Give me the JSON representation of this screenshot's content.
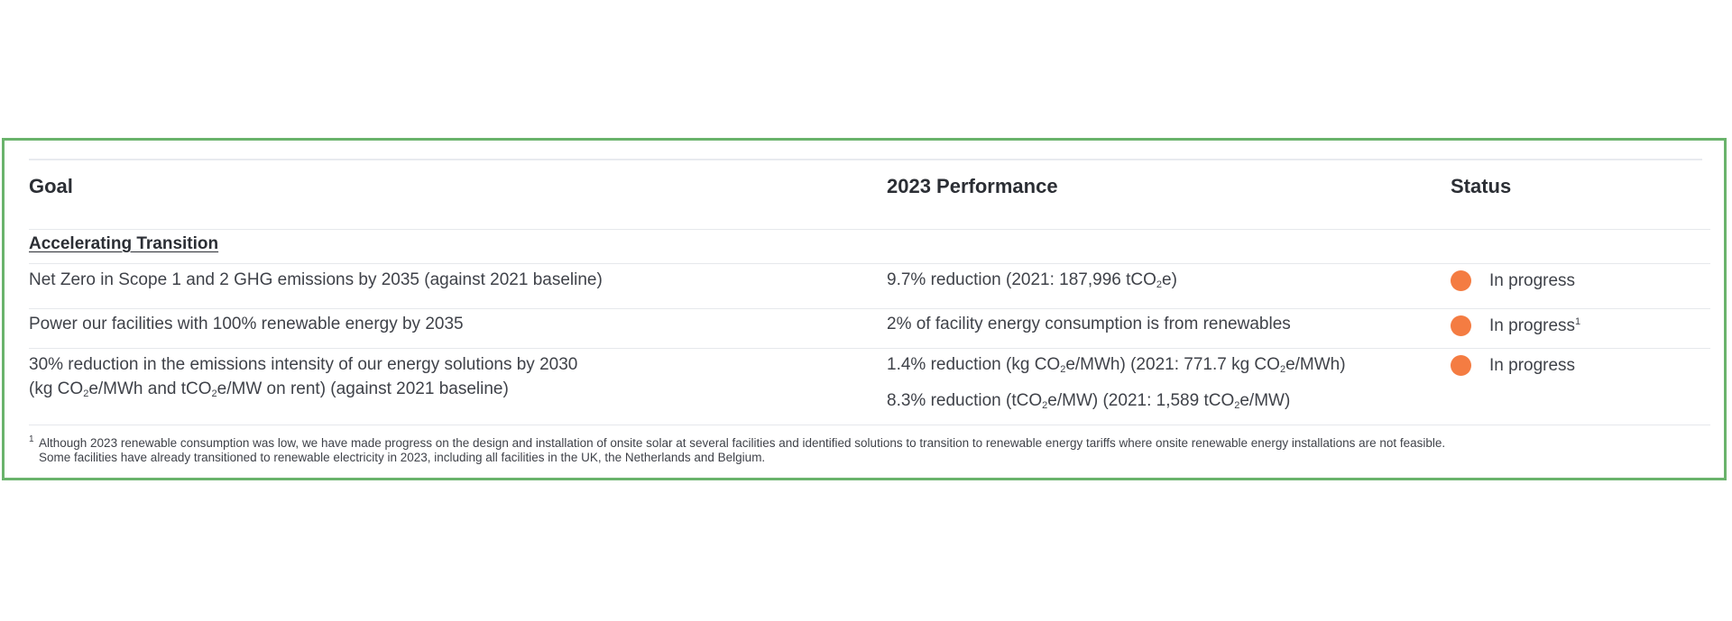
{
  "colors": {
    "frame_border": "#6ab36c",
    "status_dot": "#f47c42"
  },
  "header": {
    "goal": "Goal",
    "performance": "2023 Performance",
    "status": "Status"
  },
  "section": {
    "title": "Accelerating Transition"
  },
  "rows": [
    {
      "goal": "Net Zero in Scope 1 and 2 GHG emissions by 2035 (against 2021 baseline)",
      "performance": {
        "pre": "9.7% reduction (2021: 187,996 tCO",
        "sub": "2",
        "post": "e)"
      },
      "status": "In progress",
      "status_icon": "orange-circle"
    },
    {
      "goal": "Power our facilities with 100% renewable energy by 2035",
      "performance": "2% of facility energy consumption is from renewables",
      "status": "In progress",
      "status_note": "1",
      "status_icon": "orange-circle"
    },
    {
      "goal_line1": "30% reduction in the emissions intensity of our energy solutions by 2030",
      "goal_line2": {
        "a": "(kg CO",
        "sub1": "2",
        "b": "e/MWh and tCO",
        "sub2": "2",
        "c": "e/MW on rent) (against 2021 baseline)"
      },
      "performance_line1": {
        "a": "1.4% reduction (kg CO",
        "sub1": "2",
        "b": "e/MWh) (2021: 771.7 kg CO",
        "sub2": "2",
        "c": "e/MWh)"
      },
      "performance_line2": {
        "a": "8.3% reduction (tCO",
        "sub1": "2",
        "b": "e/MW) (2021: 1,589 tCO",
        "sub2": "2",
        "c": "e/MW)"
      },
      "status": "In progress",
      "status_icon": "orange-circle"
    }
  ],
  "footnote": {
    "mark": "1",
    "line1": "Although 2023 renewable consumption was low, we have made progress on the design and installation of onsite solar at several facilities and identified solutions to transition to renewable energy tariffs where onsite renewable energy installations are not feasible.",
    "line2": "Some facilities have already transitioned to renewable electricity in 2023, including all facilities in the UK, the Netherlands and Belgium."
  }
}
